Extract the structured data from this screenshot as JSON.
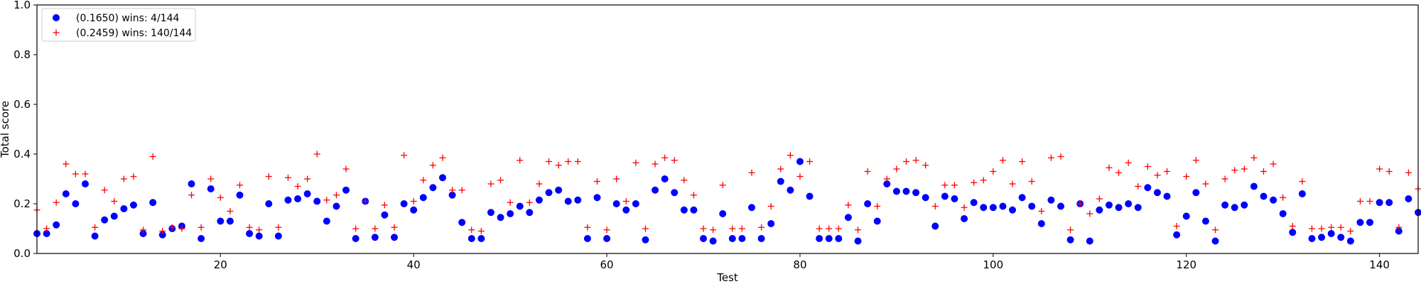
{
  "chart_data": {
    "type": "scatter",
    "title": "",
    "xlabel": "Test",
    "ylabel": "Total score",
    "xlim": [
      1,
      144
    ],
    "ylim": [
      0,
      1.0
    ],
    "xticks": [
      20,
      40,
      60,
      80,
      100,
      120,
      140
    ],
    "yticks": [
      0.0,
      0.2,
      0.4,
      0.6,
      0.8,
      1.0
    ],
    "grid": false,
    "legend_position": "top-left",
    "series": [
      {
        "name": "(0.1650) wins: 4/144",
        "marker": "circle",
        "color": "#0000ff",
        "values": [
          0.08,
          0.08,
          0.115,
          0.24,
          0.2,
          0.28,
          0.07,
          0.135,
          0.15,
          0.18,
          0.195,
          0.08,
          0.205,
          0.075,
          0.1,
          0.11,
          0.28,
          0.06,
          0.26,
          0.13,
          0.13,
          0.235,
          0.08,
          0.07,
          0.2,
          0.07,
          0.215,
          0.22,
          0.24,
          0.21,
          0.13,
          0.19,
          0.255,
          0.06,
          0.21,
          0.065,
          0.155,
          0.065,
          0.2,
          0.175,
          0.225,
          0.265,
          0.305,
          0.235,
          0.125,
          0.06,
          0.06,
          0.165,
          0.145,
          0.16,
          0.19,
          0.165,
          0.215,
          0.245,
          0.255,
          0.21,
          0.215,
          0.06,
          0.225,
          0.06,
          0.2,
          0.175,
          0.2,
          0.055,
          0.255,
          0.3,
          0.245,
          0.175,
          0.175,
          0.06,
          0.05,
          0.16,
          0.06,
          0.06,
          0.185,
          0.06,
          0.12,
          0.29,
          0.255,
          0.37,
          0.23,
          0.06,
          0.06,
          0.06,
          0.145,
          0.05,
          0.2,
          0.13,
          0.28,
          0.25,
          0.25,
          0.245,
          0.225,
          0.11,
          0.23,
          0.22,
          0.14,
          0.205,
          0.185,
          0.185,
          0.19,
          0.175,
          0.225,
          0.19,
          0.12,
          0.215,
          0.19,
          0.055,
          0.2,
          0.05,
          0.175,
          0.195,
          0.185,
          0.2,
          0.185,
          0.265,
          0.245,
          0.23,
          0.075,
          0.15,
          0.245,
          0.13,
          0.05,
          0.195,
          0.185,
          0.195,
          0.27,
          0.23,
          0.215,
          0.16,
          0.085,
          0.24,
          0.06,
          0.065,
          0.08,
          0.065,
          0.05,
          0.125,
          0.125,
          0.205,
          0.205,
          0.09,
          0.22,
          0.165
        ]
      },
      {
        "name": "(0.2459) wins: 140/144",
        "marker": "plus",
        "color": "#ff0000",
        "values": [
          0.175,
          0.1,
          0.205,
          0.36,
          0.32,
          0.32,
          0.105,
          0.255,
          0.21,
          0.3,
          0.31,
          0.095,
          0.39,
          0.09,
          0.105,
          0.1,
          0.235,
          0.105,
          0.3,
          0.225,
          0.17,
          0.275,
          0.105,
          0.095,
          0.31,
          0.105,
          0.305,
          0.27,
          0.3,
          0.4,
          0.215,
          0.235,
          0.34,
          0.1,
          0.21,
          0.1,
          0.195,
          0.105,
          0.395,
          0.21,
          0.295,
          0.355,
          0.385,
          0.255,
          0.255,
          0.095,
          0.09,
          0.28,
          0.295,
          0.205,
          0.375,
          0.205,
          0.28,
          0.37,
          0.355,
          0.37,
          0.37,
          0.105,
          0.29,
          0.095,
          0.3,
          0.21,
          0.365,
          0.1,
          0.36,
          0.385,
          0.375,
          0.295,
          0.235,
          0.1,
          0.095,
          0.275,
          0.1,
          0.1,
          0.325,
          0.105,
          0.19,
          0.34,
          0.395,
          0.31,
          0.37,
          0.1,
          0.1,
          0.1,
          0.195,
          0.095,
          0.33,
          0.19,
          0.3,
          0.34,
          0.37,
          0.375,
          0.355,
          0.19,
          0.275,
          0.275,
          0.185,
          0.285,
          0.295,
          0.33,
          0.375,
          0.28,
          0.37,
          0.29,
          0.17,
          0.385,
          0.39,
          0.095,
          0.2,
          0.16,
          0.22,
          0.345,
          0.325,
          0.365,
          0.27,
          0.35,
          0.315,
          0.33,
          0.11,
          0.31,
          0.375,
          0.28,
          0.095,
          0.3,
          0.335,
          0.34,
          0.385,
          0.33,
          0.36,
          0.225,
          0.11,
          0.29,
          0.1,
          0.1,
          0.105,
          0.105,
          0.09,
          0.21,
          0.21,
          0.34,
          0.33,
          0.105,
          0.325,
          0.26
        ]
      }
    ]
  }
}
